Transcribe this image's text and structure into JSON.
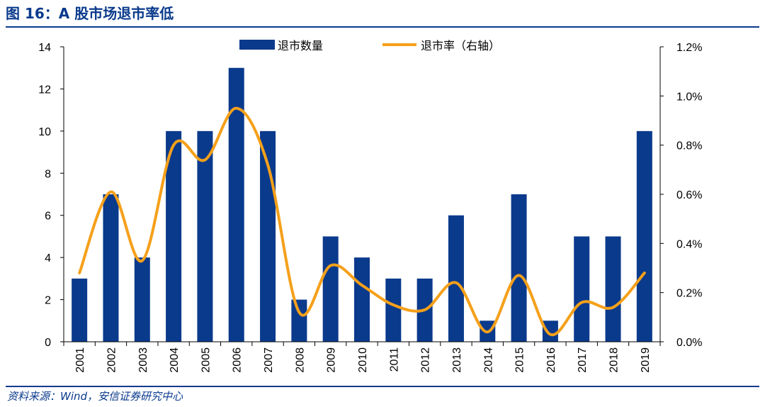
{
  "figure": {
    "title": "图 16：A 股市场退市率低",
    "source": "资料来源：Wind，安信证券研究中心"
  },
  "colors": {
    "bar": "#0a3a8c",
    "line": "#f5a01a",
    "header": "#0a3a8c"
  },
  "chart_data": {
    "type": "bar",
    "categories": [
      "2001",
      "2002",
      "2003",
      "2004",
      "2005",
      "2006",
      "2007",
      "2008",
      "2009",
      "2010",
      "2011",
      "2012",
      "2013",
      "2014",
      "2015",
      "2016",
      "2017",
      "2018",
      "2019"
    ],
    "series": [
      {
        "name": "退市数量",
        "type": "bar",
        "axis": "left",
        "values": [
          3,
          7,
          4,
          10,
          10,
          13,
          10,
          2,
          5,
          4,
          3,
          3,
          6,
          1,
          7,
          1,
          5,
          5,
          10
        ]
      },
      {
        "name": "退市率（右轴）",
        "type": "line",
        "axis": "right",
        "values": [
          0.0028,
          0.0061,
          0.0033,
          0.008,
          0.0074,
          0.0095,
          0.0072,
          0.0012,
          0.0031,
          0.0023,
          0.0015,
          0.0013,
          0.0024,
          0.0004,
          0.0027,
          0.0003,
          0.0016,
          0.0014,
          0.0028
        ]
      }
    ],
    "yticks_left": [
      "0",
      "2",
      "4",
      "6",
      "8",
      "10",
      "12",
      "14"
    ],
    "ylim_left": [
      0,
      14
    ],
    "yticks_right": [
      "0.0%",
      "0.2%",
      "0.4%",
      "0.6%",
      "0.8%",
      "1.0%",
      "1.2%"
    ],
    "ylim_right": [
      0,
      0.012
    ],
    "legend_position": "top-center",
    "grid": false
  }
}
